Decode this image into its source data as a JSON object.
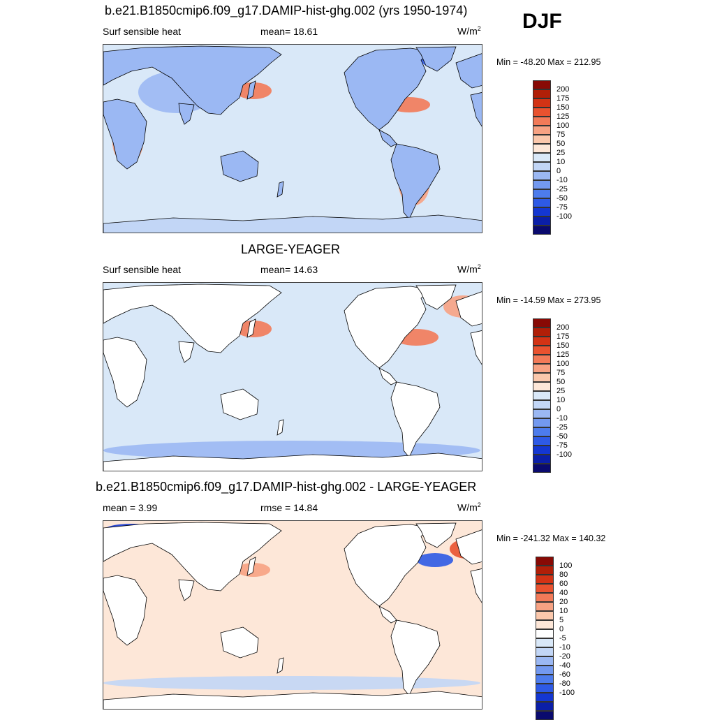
{
  "season": "DJF",
  "colors": {
    "continent_fill": "#ffffff",
    "coast": "#000000",
    "panel_scale": [
      "#0a0a6e",
      "#0b1fa8",
      "#1437d2",
      "#2e5ae6",
      "#4d7ced",
      "#7399f0",
      "#9bb8f3",
      "#c2d6f6",
      "#d9e8f8",
      "#fde7d8",
      "#fbc8ac",
      "#f7a283",
      "#f27a58",
      "#e9522f",
      "#d33315",
      "#b11f08",
      "#880a05"
    ],
    "diff_scale": [
      "#0a0a6e",
      "#0b1fa8",
      "#1437d2",
      "#2e5ae6",
      "#4d7ced",
      "#7399f0",
      "#9bb8f3",
      "#c2d6f6",
      "#d9e8f8",
      "#ffffff",
      "#fde7d8",
      "#fbc8ac",
      "#f7a283",
      "#f27a58",
      "#e9522f",
      "#d33315",
      "#b11f08",
      "#880a05"
    ]
  },
  "panels": [
    {
      "title": "b.e21.B1850cmip6.f09_g17.DAMIP-hist-ghg.002 (yrs 1950-1974)",
      "left_label": "Surf sensible heat",
      "center_label": "mean=  18.61",
      "units_base": "W/m",
      "units_sup": "2",
      "minmax": "Min = -48.20 Max = 212.95",
      "land_shaded": true,
      "levels": [
        "200",
        "175",
        "150",
        "125",
        "100",
        "75",
        "50",
        "25",
        "10",
        "0",
        "-10",
        "-25",
        "-50",
        "-75",
        "-100"
      ]
    },
    {
      "title": "LARGE-YEAGER",
      "left_label": "Surf sensible heat",
      "center_label": "mean=  14.63",
      "units_base": "W/m",
      "units_sup": "2",
      "minmax": "Min = -14.59 Max = 273.95",
      "land_shaded": false,
      "levels": [
        "200",
        "175",
        "150",
        "125",
        "100",
        "75",
        "50",
        "25",
        "10",
        "0",
        "-10",
        "-25",
        "-50",
        "-75",
        "-100"
      ]
    },
    {
      "title": "b.e21.B1850cmip6.f09_g17.DAMIP-hist-ghg.002 - LARGE-YEAGER",
      "left_label": "mean =   3.99",
      "center_label": "rmse =  14.84",
      "units_base": "W/m",
      "units_sup": "2",
      "minmax": "Min = -241.32 Max = 140.32",
      "land_shaded": false,
      "levels": [
        "100",
        "80",
        "60",
        "40",
        "20",
        "10",
        "5",
        "0",
        "-5",
        "-10",
        "-20",
        "-40",
        "-60",
        "-80",
        "-100"
      ]
    }
  ]
}
